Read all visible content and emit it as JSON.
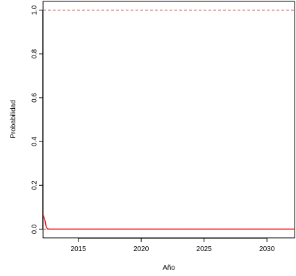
{
  "chart_data": {
    "type": "line",
    "title": "",
    "xlabel": "Año",
    "ylabel": "Probabilidad",
    "xlim": [
      2012.2,
      2032.2
    ],
    "ylim": [
      -0.04,
      1.04
    ],
    "x_ticks": [
      2015,
      2020,
      2025,
      2030
    ],
    "y_ticks": [
      0.0,
      0.2,
      0.4,
      0.6,
      0.8,
      1.0
    ],
    "x_tick_labels": [
      "2015",
      "2020",
      "2025",
      "2030"
    ],
    "y_tick_labels": [
      "0.0",
      "0.2",
      "0.4",
      "0.6",
      "0.8",
      "1.0"
    ],
    "grid": false,
    "series": [
      {
        "line_style": "solid",
        "color": "#e41a1c",
        "x": [
          2012.2,
          2012.35,
          2012.45,
          2012.55,
          2012.7,
          2013,
          2015,
          2020,
          2025,
          2030,
          2032.2
        ],
        "y": [
          0.065,
          0.04,
          0.01,
          0.001,
          0.0,
          0.0,
          0.0,
          0.0,
          0.0,
          0.0,
          0.0
        ]
      }
    ],
    "reference_lines": [
      {
        "y": 1.0,
        "color": "#d62728",
        "line_style": "dashed"
      },
      {
        "y": 0.0,
        "color": "#d62728",
        "line_style": "dashed"
      }
    ]
  }
}
